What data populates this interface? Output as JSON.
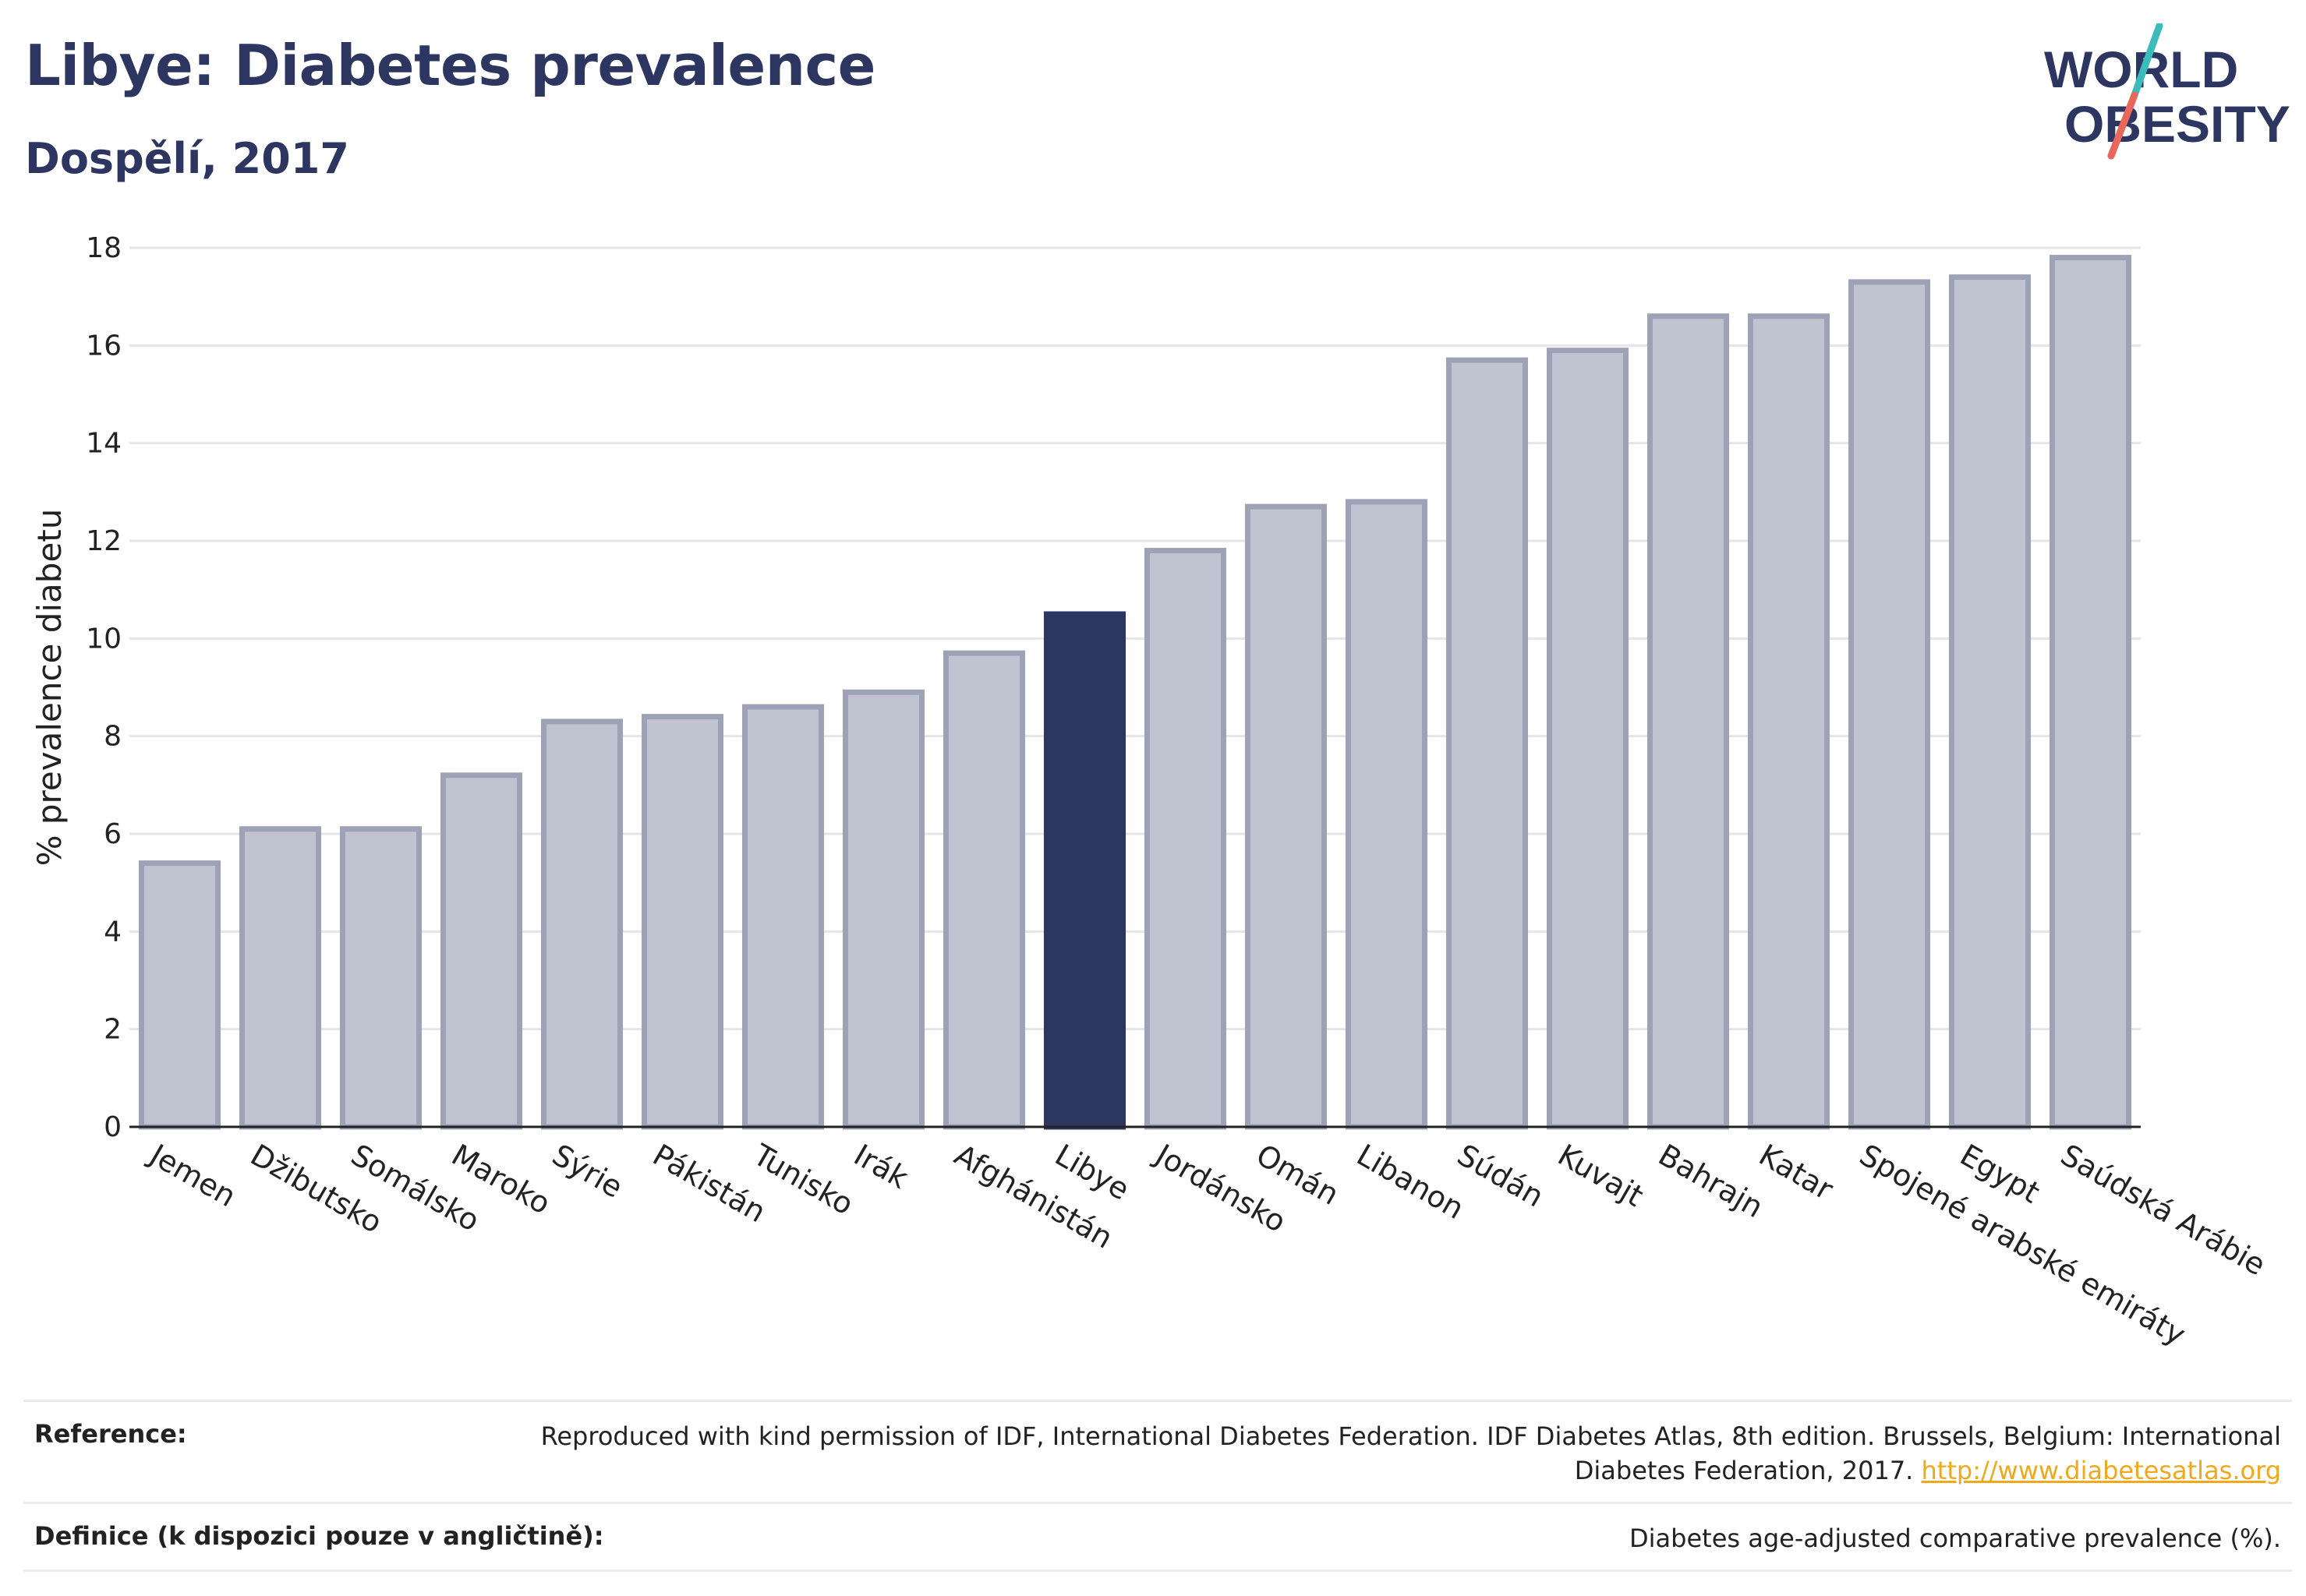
{
  "header": {
    "title": "Libye: Diabetes prevalence",
    "subtitle": "Dospělí, 2017"
  },
  "logo": {
    "line1": "WORLD",
    "line2": "OBESITY",
    "colors": {
      "text": "#2d3660",
      "slash_top": "#3bbcbc",
      "slash_bottom": "#e8675a"
    }
  },
  "chart_data": {
    "type": "bar",
    "ylabel": "% prevalence diabetu",
    "ylim": [
      0,
      18
    ],
    "yticks": [
      0,
      2,
      4,
      6,
      8,
      10,
      12,
      14,
      16,
      18
    ],
    "grid": true,
    "highlight": "Libye",
    "colors": {
      "bar": "#c0c3d0",
      "bar_border": "#9da2b7",
      "highlight": "#2d3660",
      "grid": "#e6e6ea",
      "axis": "#222222"
    },
    "categories": [
      "Jemen",
      "Džibutsko",
      "Somálsko",
      "Maroko",
      "Sýrie",
      "Pákistán",
      "Tunisko",
      "Irák",
      "Afghánistán",
      "Libye",
      "Jordánsko",
      "Omán",
      "Libanon",
      "Súdán",
      "Kuvajt",
      "Bahrajn",
      "Katar",
      "Spojené arabské emiráty",
      "Egypt",
      "Saúdská Arábie"
    ],
    "values": [
      5.4,
      6.1,
      6.1,
      7.2,
      8.3,
      8.4,
      8.6,
      8.9,
      9.7,
      10.5,
      11.8,
      12.7,
      12.8,
      15.7,
      15.9,
      16.6,
      16.6,
      17.3,
      17.4,
      17.8
    ]
  },
  "footer": {
    "reference_label": "Reference:",
    "reference_text": "Reproduced with kind permission of IDF, International Diabetes Federation. IDF Diabetes Atlas, 8th edition. Brussels, Belgium: International Diabetes Federation, 2017.",
    "reference_link": "http://www.diabetesatlas.org",
    "definition_label": "Definice (k dispozici pouze v angličtině):",
    "definition_text": "Diabetes age-adjusted comparative prevalence (%)."
  }
}
